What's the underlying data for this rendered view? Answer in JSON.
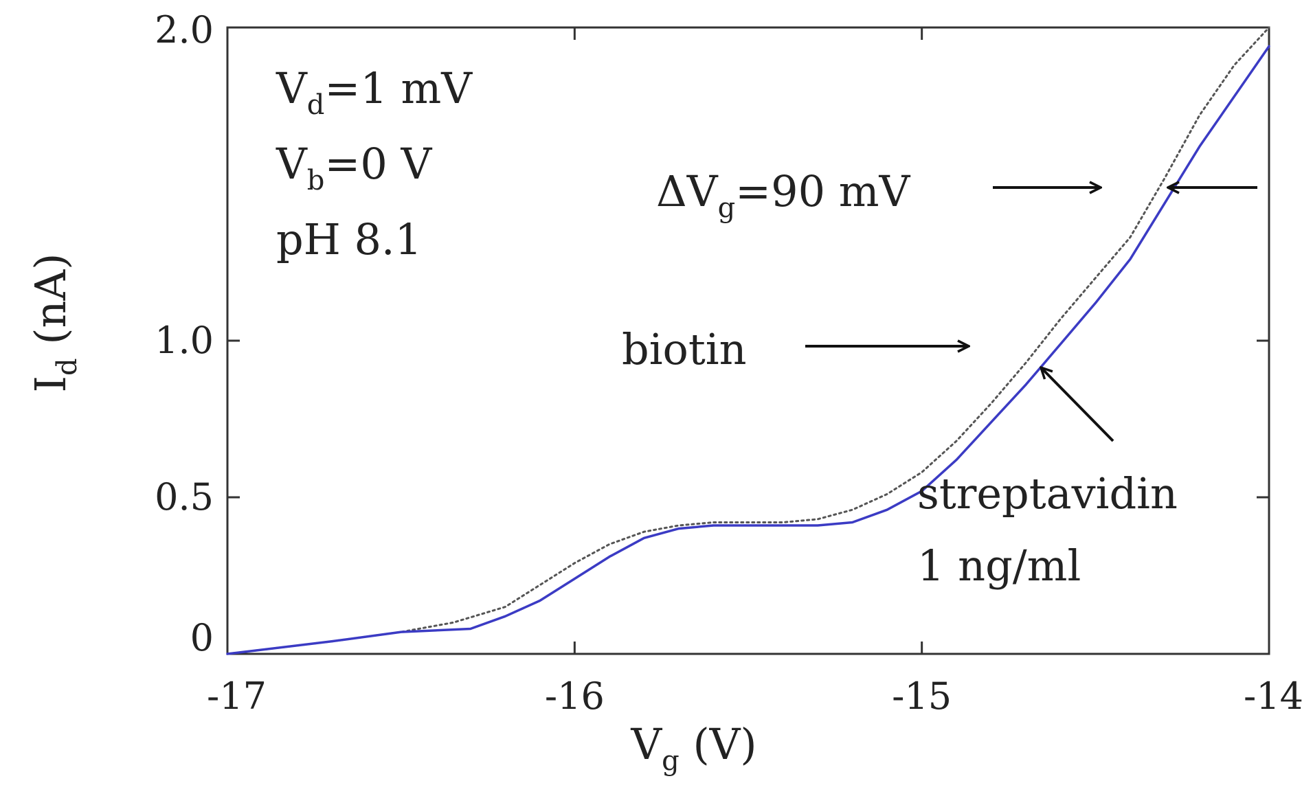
{
  "chart_data": {
    "type": "line",
    "xlabel": {
      "main": "V",
      "sub": "g",
      "tail": " (V)"
    },
    "ylabel": {
      "main": "I",
      "sub": "d",
      "tail": " (nA)"
    },
    "xlim": [
      -17,
      -14
    ],
    "ylim": [
      0,
      2.0
    ],
    "x_ticks": [
      -17,
      -16,
      -15,
      -14
    ],
    "x_tick_labels": [
      "-17",
      "-16",
      "-15",
      "-14"
    ],
    "y_ticks": [
      0,
      0.5,
      1.0,
      2.0
    ],
    "y_tick_labels": [
      "0",
      "0.5",
      "1.0",
      "2.0"
    ],
    "grid": false,
    "series": [
      {
        "name": "biotin",
        "color": "#555555",
        "style": "dotted",
        "x": [
          -17.0,
          -16.7,
          -16.5,
          -16.35,
          -16.2,
          -16.1,
          -16.0,
          -15.9,
          -15.8,
          -15.7,
          -15.6,
          -15.5,
          -15.4,
          -15.3,
          -15.2,
          -15.1,
          -15.0,
          -14.9,
          -14.8,
          -14.7,
          -14.6,
          -14.5,
          -14.4,
          -14.3,
          -14.2,
          -14.1,
          -14.0
        ],
        "y": [
          0.0,
          0.04,
          0.07,
          0.1,
          0.15,
          0.22,
          0.29,
          0.35,
          0.39,
          0.41,
          0.42,
          0.42,
          0.42,
          0.43,
          0.46,
          0.51,
          0.58,
          0.68,
          0.8,
          0.93,
          1.07,
          1.2,
          1.33,
          1.52,
          1.72,
          1.88,
          2.0
        ]
      },
      {
        "name": "streptavidin 1 ng/ml",
        "color": "#3b3bc4",
        "style": "solid",
        "x": [
          -17.0,
          -16.7,
          -16.5,
          -16.3,
          -16.2,
          -16.1,
          -16.0,
          -15.9,
          -15.8,
          -15.7,
          -15.6,
          -15.5,
          -15.4,
          -15.3,
          -15.2,
          -15.1,
          -15.0,
          -14.9,
          -14.8,
          -14.7,
          -14.6,
          -14.5,
          -14.4,
          -14.3,
          -14.2,
          -14.1,
          -14.0
        ],
        "y": [
          0.0,
          0.04,
          0.07,
          0.08,
          0.12,
          0.17,
          0.24,
          0.31,
          0.37,
          0.4,
          0.41,
          0.41,
          0.41,
          0.41,
          0.42,
          0.46,
          0.52,
          0.62,
          0.74,
          0.86,
          0.99,
          1.12,
          1.26,
          1.44,
          1.62,
          1.78,
          1.94
        ]
      }
    ],
    "annotations": {
      "conditions": [
        {
          "main": "V",
          "sub": "d",
          "tail": "=1 mV"
        },
        {
          "main": "V",
          "sub": "b",
          "tail": "=0 V"
        },
        {
          "main": "pH 8.1"
        }
      ],
      "delta": {
        "main": "ΔV",
        "sub": "g",
        "tail": "=90 mV"
      },
      "biotin": "biotin",
      "streptavidin_line1": "streptavidin",
      "streptavidin_line2": "1 ng/ml"
    }
  }
}
